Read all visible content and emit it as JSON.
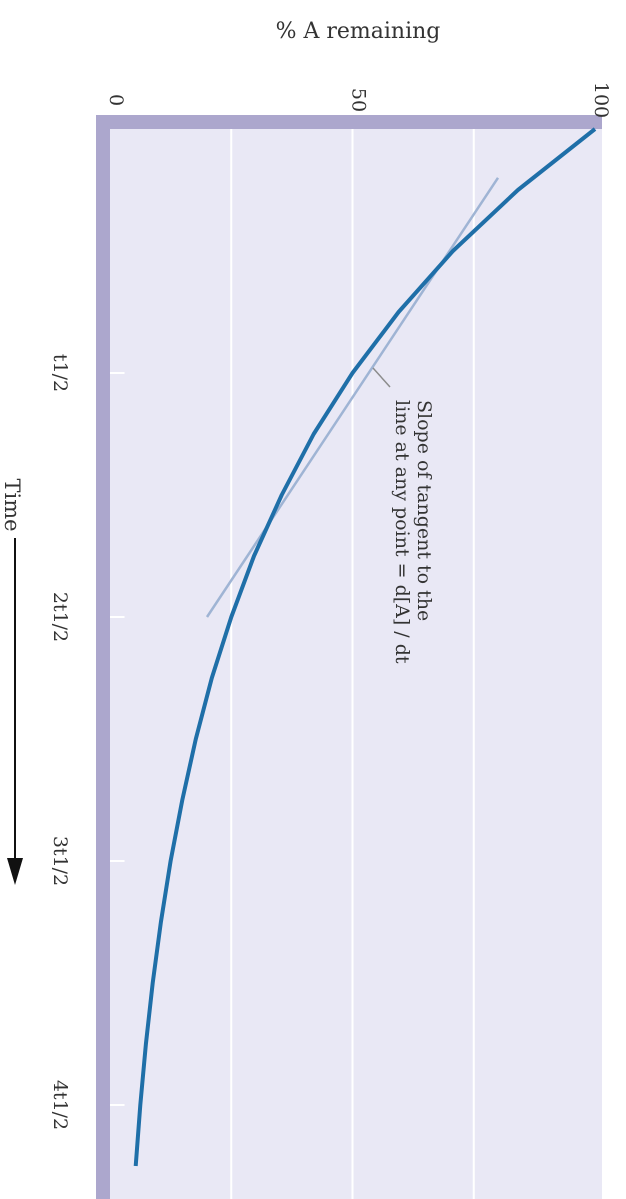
{
  "chart_data": {
    "type": "line",
    "title": "",
    "xlabel": "Time",
    "ylabel": "% A remaining",
    "x_unit": "half-lives",
    "xlim": [
      0,
      4.3
    ],
    "ylim": [
      0,
      100
    ],
    "y_ticks": [
      0,
      50,
      100
    ],
    "y_tick_labels": [
      "0",
      "50",
      "100"
    ],
    "x_ticks": [
      1,
      2,
      3,
      4
    ],
    "x_tick_labels": [
      "t1/2",
      "2t1/2",
      "3t1/2",
      "4t1/2"
    ],
    "grid": true,
    "series": [
      {
        "x": [
          0,
          0.25,
          0.5,
          0.75,
          1,
          1.25,
          1.5,
          1.75,
          2,
          2.25,
          2.5,
          2.75,
          3,
          3.25,
          3.5,
          3.75,
          4,
          4.25
        ],
        "y": [
          100,
          84.1,
          70.7,
          59.5,
          50,
          42,
          35.4,
          29.7,
          25,
          21,
          17.7,
          14.9,
          12.5,
          10.5,
          8.8,
          7.4,
          6.25,
          5.3
        ]
      }
    ],
    "tangent": {
      "x": [
        0.2,
        2
      ],
      "y": [
        80,
        20
      ]
    },
    "annotation": {
      "lines": [
        "Slope of tangent to the",
        "line at any point = d[A] / dt"
      ]
    },
    "colors": {
      "curve": "#1f6fa8",
      "tangent": "#9fb4d4",
      "axis_band": "#aca7cd",
      "plot_bg": "#e9e8f5",
      "grid": "#ffffff"
    }
  }
}
